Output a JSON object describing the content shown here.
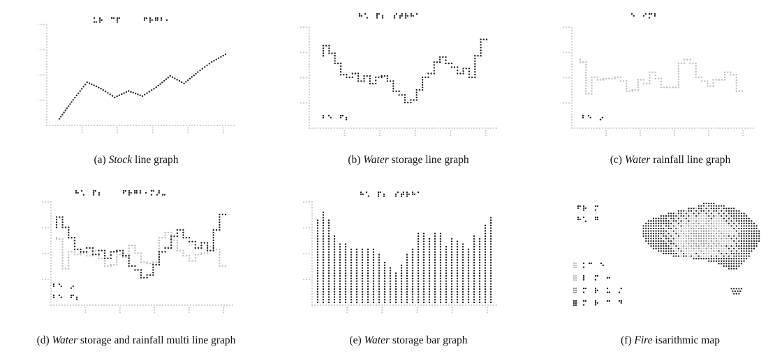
{
  "colors": {
    "dark": "#1e1e1e",
    "light": "#bdbdbd",
    "mid": "#8a8a8a",
    "axis": "#c7c7c7"
  },
  "captions": [
    {
      "label": "(a)",
      "emph": "Stock",
      "rest": "line graph"
    },
    {
      "label": "(b)",
      "emph": "Water",
      "rest": "storage line graph"
    },
    {
      "label": "(c)",
      "emph": "Water",
      "rest": "rainfall line graph"
    },
    {
      "label": "(d)",
      "emph": "Water",
      "rest": "storage and rainfall multi line graph"
    },
    {
      "label": "(e)",
      "emph": "Water",
      "rest": "storage bar graph"
    },
    {
      "label": "(f)",
      "emph": "Fire",
      "rest": "isarithmic map"
    }
  ],
  "chart_data": [
    {
      "id": "a",
      "type": "line",
      "title": "",
      "xlabel": "",
      "ylabel": "",
      "ylim": [
        0,
        4
      ],
      "grid": false,
      "x": [
        0,
        1,
        2,
        3,
        4,
        5,
        6,
        7,
        8,
        9,
        10,
        11,
        12
      ],
      "series": [
        {
          "values": [
            0.15,
            0.9,
            1.6,
            1.35,
            1.0,
            1.25,
            1.05,
            1.4,
            1.85,
            1.55,
            2.0,
            2.4,
            2.7
          ],
          "color": "#1e1e1e"
        }
      ]
    },
    {
      "id": "b",
      "type": "line",
      "title": "",
      "xlabel": "",
      "ylabel": "",
      "ylim": [
        0,
        4
      ],
      "grid": false,
      "x": [
        0,
        1,
        2,
        3,
        4,
        5,
        6,
        7,
        8,
        9,
        10,
        11,
        12,
        13,
        14,
        15,
        16,
        17,
        18,
        19,
        20,
        21,
        22,
        23,
        24,
        25,
        26,
        27,
        28
      ],
      "series": [
        {
          "values": [
            2.7,
            3.1,
            2.8,
            2.4,
            1.95,
            1.85,
            2.0,
            1.7,
            1.9,
            1.6,
            1.85,
            1.9,
            1.7,
            1.3,
            1.15,
            0.85,
            0.95,
            1.35,
            1.85,
            2.0,
            2.45,
            2.65,
            2.4,
            2.25,
            2.0,
            2.2,
            1.85,
            2.7,
            3.35
          ],
          "color": "#1e1e1e"
        }
      ]
    },
    {
      "id": "c",
      "type": "line",
      "title": "",
      "xlabel": "",
      "ylabel": "",
      "ylim": [
        0,
        4
      ],
      "grid": false,
      "x": [
        0,
        1,
        2,
        3,
        4,
        5,
        6,
        7,
        8,
        9,
        10,
        11,
        12,
        13,
        14,
        15,
        16,
        17,
        18,
        19,
        20,
        21,
        22,
        23,
        24,
        25,
        26,
        27,
        28
      ],
      "series": [
        {
          "values": [
            2.55,
            2.45,
            1.2,
            1.85,
            1.75,
            1.8,
            1.8,
            1.85,
            1.7,
            1.3,
            1.35,
            1.75,
            1.6,
            2.05,
            1.8,
            1.45,
            1.45,
            1.45,
            2.4,
            2.55,
            2.4,
            1.85,
            1.7,
            1.5,
            1.75,
            1.75,
            2.05,
            1.95,
            1.3
          ],
          "color": "#bdbdbd"
        }
      ]
    },
    {
      "id": "d",
      "type": "line",
      "title": "",
      "xlabel": "",
      "ylabel": "",
      "ylim": [
        0,
        4
      ],
      "grid": false,
      "x": [
        0,
        1,
        2,
        3,
        4,
        5,
        6,
        7,
        8,
        9,
        10,
        11,
        12,
        13,
        14,
        15,
        16,
        17,
        18,
        19,
        20,
        21,
        22,
        23,
        24,
        25,
        26,
        27,
        28
      ],
      "series": [
        {
          "values": [
            2.8,
            3.2,
            2.8,
            2.4,
            1.95,
            1.85,
            2.0,
            1.75,
            1.9,
            1.6,
            1.85,
            1.9,
            1.7,
            1.3,
            1.15,
            0.85,
            0.95,
            1.35,
            1.85,
            2.0,
            2.45,
            2.7,
            2.4,
            2.25,
            2.0,
            2.2,
            1.9,
            2.7,
            3.3
          ],
          "color": "#1e1e1e"
        },
        {
          "values": [
            2.4,
            2.35,
            1.2,
            1.85,
            1.75,
            1.8,
            1.7,
            1.9,
            1.6,
            1.3,
            1.35,
            1.75,
            1.65,
            2.1,
            1.8,
            1.45,
            1.4,
            1.45,
            2.4,
            2.6,
            2.3,
            1.9,
            1.7,
            1.5,
            1.75,
            1.8,
            2.05,
            1.95,
            1.3
          ],
          "color": "#bdbdbd"
        }
      ]
    },
    {
      "id": "e",
      "type": "bar",
      "title": "",
      "xlabel": "",
      "ylabel": "",
      "ylim": [
        0,
        4
      ],
      "grid": false,
      "categories": [
        "1",
        "2",
        "3",
        "4",
        "5",
        "6",
        "7",
        "8",
        "9",
        "10",
        "11",
        "12",
        "13",
        "14",
        "15",
        "16",
        "17",
        "18",
        "19",
        "20",
        "21",
        "22",
        "23",
        "24",
        "25",
        "26",
        "27",
        "28",
        "29",
        "30",
        "31",
        "32"
      ],
      "values": [
        3.2,
        3.55,
        3.25,
        2.65,
        2.35,
        2.3,
        2.15,
        2.15,
        2.15,
        2.15,
        2.15,
        1.9,
        1.55,
        1.35,
        1.2,
        1.45,
        1.9,
        2.15,
        2.7,
        2.7,
        2.5,
        2.75,
        2.75,
        2.25,
        2.5,
        2.4,
        2.35,
        2.15,
        2.6,
        2.5,
        3.0,
        3.35
      ],
      "color": "#1e1e1e"
    },
    {
      "id": "f",
      "type": "heatmap",
      "title": "",
      "colors": [
        "#1e1e1e",
        "#8a8a8a",
        "#bdbdbd"
      ]
    }
  ]
}
